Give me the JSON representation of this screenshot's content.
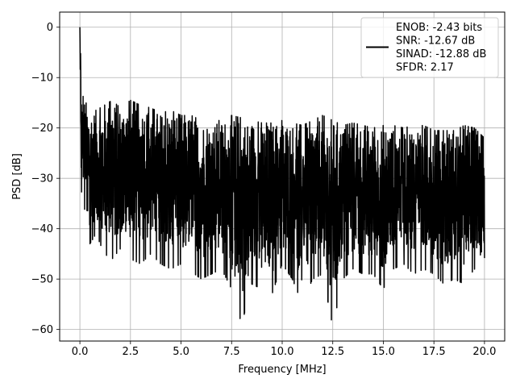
{
  "chart_data": {
    "type": "line",
    "title": "",
    "xlabel": "Frequency [MHz]",
    "ylabel": "PSD [dB]",
    "xlim": [
      -1.0,
      21.0
    ],
    "ylim": [
      -62.3,
      3.0
    ],
    "xticks": [
      0.0,
      2.5,
      5.0,
      7.5,
      10.0,
      12.5,
      15.0,
      17.5,
      20.0
    ],
    "xtick_labels": [
      "0.0",
      "2.5",
      "5.0",
      "7.5",
      "10.0",
      "12.5",
      "15.0",
      "17.5",
      "20.0"
    ],
    "yticks": [
      0,
      -10,
      -20,
      -30,
      -40,
      -50,
      -60
    ],
    "ytick_labels": [
      "0",
      "−10",
      "−20",
      "−30",
      "−40",
      "−50",
      "−60"
    ],
    "grid": true,
    "legend": {
      "placement": "top-right",
      "entries": [
        "ENOB: -2.43 bits",
        "SNR: -12.67 dB",
        "SINAD: -12.88 dB",
        "SFDR: 2.17"
      ]
    },
    "series": [
      {
        "color": "#000000",
        "description_of_shape": "dense noise floor spectrum",
        "x": [
          0.0,
          0.02,
          0.05,
          0.08,
          0.1,
          0.15,
          0.2,
          0.3,
          0.5,
          0.8,
          1.2,
          1.6,
          2.0,
          2.5,
          3.0,
          3.5,
          4.0,
          4.5,
          5.0,
          5.5,
          6.0,
          6.5,
          7.0,
          7.5,
          8.0,
          8.5,
          9.0,
          9.5,
          10.0,
          10.5,
          11.0,
          11.5,
          12.0,
          12.5,
          13.0,
          13.5,
          14.0,
          14.5,
          15.0,
          15.5,
          16.0,
          16.5,
          17.0,
          17.5,
          18.0,
          18.5,
          19.0,
          19.5,
          20.0
        ],
        "y_upper": [
          0.0,
          -3.0,
          -8.0,
          -12.0,
          -15.0,
          -12.0,
          -14.0,
          -15.0,
          -16.0,
          -16.5,
          -15.5,
          -14.5,
          -16.0,
          -14.5,
          -15.5,
          -16.0,
          -17.0,
          -16.5,
          -17.5,
          -17.5,
          -18.5,
          -18.5,
          -18.5,
          -17.5,
          -18.0,
          -18.5,
          -19.0,
          -19.0,
          -18.5,
          -19.0,
          -19.5,
          -18.5,
          -17.5,
          -18.5,
          -19.5,
          -19.0,
          -19.5,
          -20.0,
          -19.5,
          -19.5,
          -20.0,
          -19.5,
          -19.5,
          -20.5,
          -20.5,
          -20.5,
          -19.5,
          -20.0,
          -22.0
        ],
        "y_lower": [
          -5.0,
          -18.0,
          -23.0,
          -38.0,
          -36.0,
          -30.0,
          -41.0,
          -40.0,
          -43.0,
          -41.0,
          -45.0,
          -46.0,
          -44.0,
          -46.0,
          -47.0,
          -45.0,
          -47.0,
          -48.0,
          -47.0,
          -48.5,
          -50.0,
          -49.0,
          -48.0,
          -52.0,
          -59.0,
          -51.0,
          -52.0,
          -53.0,
          -47.0,
          -50.0,
          -55.0,
          -50.0,
          -49.0,
          -59.5,
          -50.0,
          -48.0,
          -49.0,
          -49.0,
          -52.0,
          -48.0,
          -47.0,
          -49.0,
          -48.0,
          -49.0,
          -51.0,
          -50.0,
          -51.0,
          -48.0,
          -50.5
        ]
      }
    ]
  }
}
